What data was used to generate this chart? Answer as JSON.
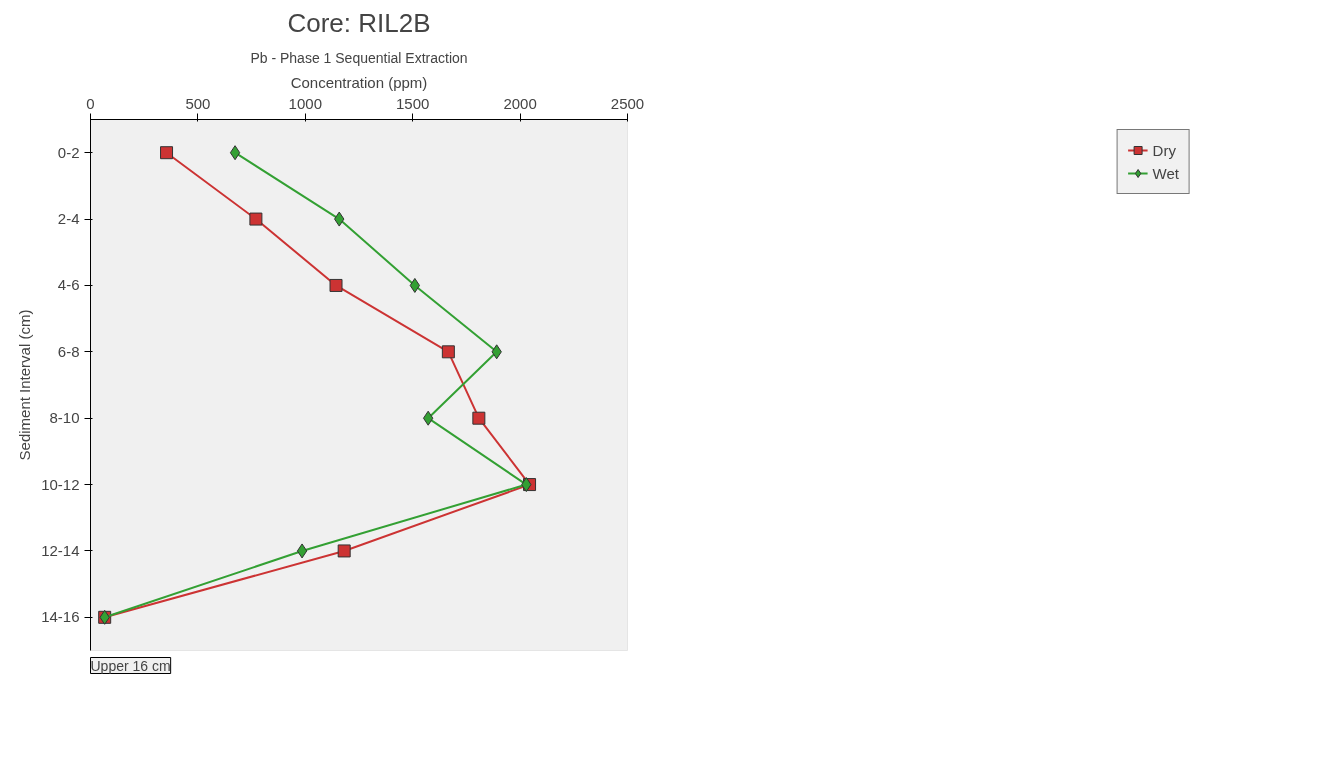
{
  "chart_data": {
    "type": "line",
    "title": "Core: RIL2B",
    "subtitle": "Pb - Phase 1 Sequential Extraction",
    "xlabel": "Concentration (ppm)",
    "ylabel": "Sediment Interval (cm)",
    "orientation": "horizontal",
    "categories": [
      "0-2",
      "2-4",
      "4-6",
      "6-8",
      "8-10",
      "10-12",
      "12-14",
      "14-16"
    ],
    "series": [
      {
        "name": "Dry",
        "color": "#cc3333",
        "marker": "square",
        "values": [
          354,
          770,
          1143,
          1666,
          1808,
          2044,
          1181,
          66
        ]
      },
      {
        "name": "Wet",
        "color": "#33a033",
        "marker": "diamond",
        "values": [
          673,
          1158,
          1510,
          1891,
          1572,
          2029,
          985,
          66
        ]
      }
    ],
    "xlim": [
      0,
      2500
    ],
    "xticks": [
      0,
      500,
      1000,
      1500,
      2000,
      2500
    ],
    "grid": false,
    "legend": "right",
    "annotations": [
      "Upper 16 cm"
    ]
  }
}
